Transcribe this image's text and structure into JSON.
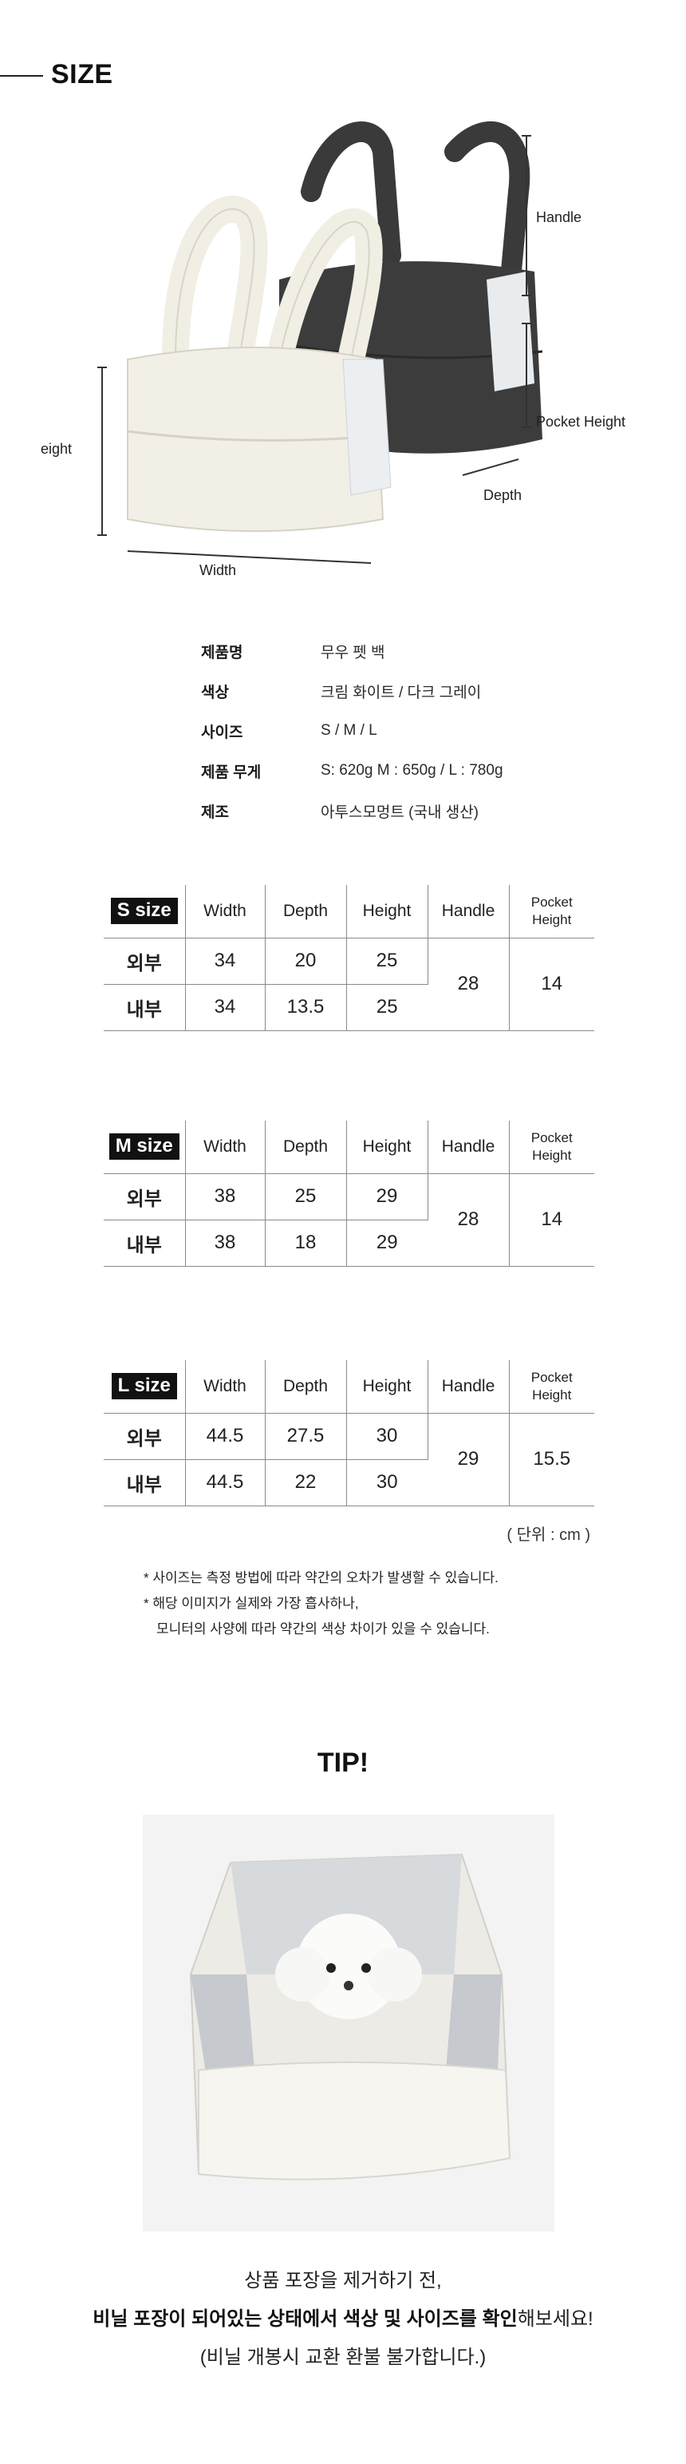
{
  "header": {
    "title": "SIZE"
  },
  "dimension_labels": {
    "handle": "Handle",
    "pocket_height": "Pocket Height",
    "depth": "Depth",
    "height": "Height",
    "width": "Width"
  },
  "info": [
    {
      "label": "제품명",
      "value": "무우 펫 백"
    },
    {
      "label": "색상",
      "value": "크림 화이트 / 다크 그레이"
    },
    {
      "label": "사이즈",
      "value": "S / M / L"
    },
    {
      "label": "제품 무게",
      "value": "S: 620g M : 650g / L : 780g"
    },
    {
      "label": "제조",
      "value": "아투스모멍트 (국내 생산)"
    }
  ],
  "table_headers": {
    "width": "Width",
    "depth": "Depth",
    "height": "Height",
    "handle": "Handle",
    "pocket_line1": "Pocket",
    "pocket_line2": "Height"
  },
  "row_labels": {
    "outer": "외부",
    "inner": "내부"
  },
  "tables": [
    {
      "size": "S size",
      "outer": [
        "34",
        "20",
        "25"
      ],
      "inner": [
        "34",
        "13.5",
        "25"
      ],
      "handle": "28",
      "pocket": "14"
    },
    {
      "size": "M size",
      "outer": [
        "38",
        "25",
        "29"
      ],
      "inner": [
        "38",
        "18",
        "29"
      ],
      "handle": "28",
      "pocket": "14"
    },
    {
      "size": "L size",
      "outer": [
        "44.5",
        "27.5",
        "30"
      ],
      "inner": [
        "44.5",
        "22",
        "30"
      ],
      "handle": "29",
      "pocket": "15.5"
    }
  ],
  "unit": "( 단위 : cm )",
  "notes": [
    "* 사이즈는 측정 방법에 따라 약간의 오차가 발생할 수 있습니다.",
    "* 해당 이미지가 실제와 가장 흡사하나,",
    "모니터의 사양에 따라 약간의 색상 차이가 있을 수 있습니다."
  ],
  "tip": {
    "title": "TIP!",
    "line1": "상품 포장을 제거하기 전,",
    "line2_bold": "비닐 포장이 되어있는 상태에서 색상 및 사이즈를 확인",
    "line2_rest": "해보세요!",
    "line3": "(비닐 개봉시 교환 환불 불가합니다.)"
  },
  "colors": {
    "cream": "#f2efe6",
    "dark_gray": "#3c3c3c",
    "ink": "#111111"
  }
}
